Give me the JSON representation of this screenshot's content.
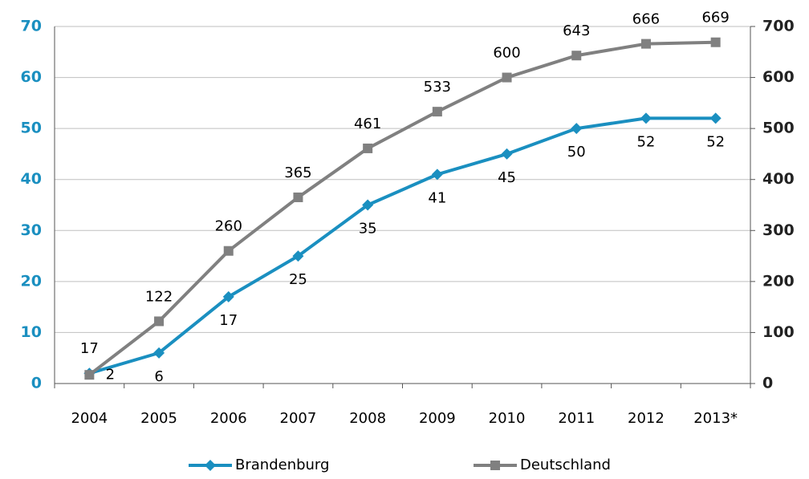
{
  "chart_data": {
    "type": "line",
    "categories": [
      "2004",
      "2005",
      "2006",
      "2007",
      "2008",
      "2009",
      "2010",
      "2011",
      "2012",
      "2013*"
    ],
    "series": [
      {
        "name": "Brandenburg",
        "color": "#1a8fc0",
        "values": [
          2,
          6,
          17,
          25,
          35,
          41,
          45,
          50,
          52,
          52
        ]
      },
      {
        "name": "Deutschland",
        "color": "#808080",
        "axis": "y2",
        "values": [
          17,
          122,
          260,
          365,
          461,
          533,
          600,
          643,
          666,
          669
        ]
      }
    ],
    "ylim": [
      0,
      70
    ],
    "yticks": [
      0,
      10,
      20,
      30,
      40,
      50,
      60,
      70
    ],
    "y2lim": [
      0,
      700
    ],
    "y2ticks": [
      0,
      100,
      200,
      300,
      400,
      500,
      600,
      700
    ],
    "grid": true,
    "legend": "bottom"
  }
}
